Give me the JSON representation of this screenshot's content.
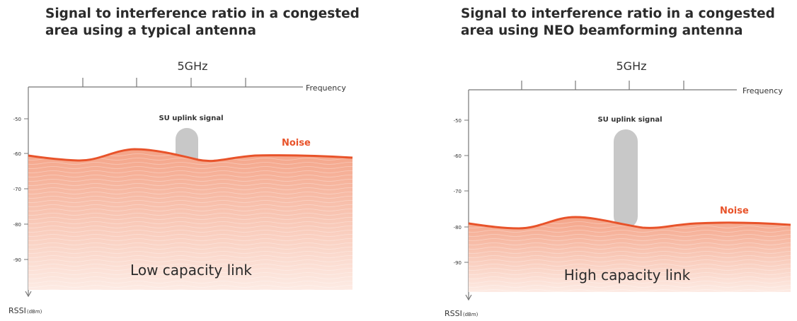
{
  "left": {
    "title": "Signal to interference ratio in a congested area using a typical antenna",
    "band_label": "5GHz",
    "frequency_label": "Frequency",
    "signal_label": "SU uplink signal",
    "noise_label": "Noise",
    "capacity_label": "Low capacity link",
    "y_axis_label": "RSSI",
    "y_axis_unit": "(dBm)",
    "y_ticks": [
      "-50",
      "-60",
      "-70",
      "-80",
      "-90"
    ],
    "noise_level_dbm": -61,
    "signal_peak_dbm": -54
  },
  "right": {
    "title": "Signal to interference ratio in a congested area using NEO beamforming antenna",
    "band_label": "5GHz",
    "frequency_label": "Frequency",
    "signal_label": "SU uplink signal",
    "noise_label": "Noise",
    "capacity_label": "High capacity link",
    "y_axis_label": "RSSI",
    "y_axis_unit": "(dBm)",
    "y_ticks": [
      "-50",
      "-60",
      "-70",
      "-80",
      "-90"
    ],
    "noise_level_dbm": -79,
    "signal_peak_dbm": -54
  },
  "colors": {
    "noise_line": "#e8532a",
    "noise_fill_top": "#f4a488",
    "noise_fill_bottom": "#fde9e1",
    "signal": "#c8c8c8",
    "axis": "#777777"
  }
}
